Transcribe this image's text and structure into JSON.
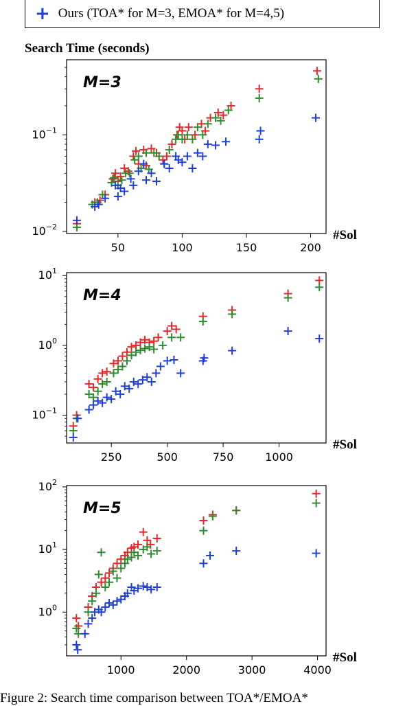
{
  "legend": {
    "label": "Ours (TOA* for M=3, EMOA* for M=4,5)",
    "marker": "+"
  },
  "title": "Search Time (seconds)",
  "caption": "Figure 2: Search time comparison between TOA*/EMOA*",
  "colors": {
    "red": "#e8272a",
    "green": "#2e8b2e",
    "blue": "#1f3fd8"
  },
  "chart_data": [
    {
      "type": "scatter",
      "panel_label": "M=3",
      "x_axis_label": "#Sol",
      "y_scale": "log",
      "xlim": [
        10,
        212
      ],
      "ylim": [
        0.0095,
        0.6
      ],
      "x_ticks": [
        50,
        100,
        150,
        200
      ],
      "y_ticks": [
        {
          "value": 0.01,
          "exp": "-2"
        },
        {
          "value": 0.1,
          "exp": "-1"
        }
      ],
      "series": [
        {
          "color": "red",
          "points": [
            [
              18,
              0.012
            ],
            [
              32,
              0.02
            ],
            [
              36,
              0.021
            ],
            [
              40,
              0.024
            ],
            [
              46,
              0.035
            ],
            [
              48,
              0.04
            ],
            [
              50,
              0.033
            ],
            [
              52,
              0.037
            ],
            [
              55,
              0.045
            ],
            [
              58,
              0.042
            ],
            [
              62,
              0.06
            ],
            [
              64,
              0.068
            ],
            [
              66,
              0.05
            ],
            [
              70,
              0.07
            ],
            [
              72,
              0.048
            ],
            [
              76,
              0.072
            ],
            [
              80,
              0.065
            ],
            [
              85,
              0.055
            ],
            [
              88,
              0.06
            ],
            [
              92,
              0.08
            ],
            [
              96,
              0.1
            ],
            [
              98,
              0.12
            ],
            [
              100,
              0.11
            ],
            [
              102,
              0.09
            ],
            [
              105,
              0.12
            ],
            [
              110,
              0.1
            ],
            [
              115,
              0.13
            ],
            [
              118,
              0.11
            ],
            [
              122,
              0.15
            ],
            [
              128,
              0.17
            ],
            [
              132,
              0.16
            ],
            [
              138,
              0.2
            ],
            [
              160,
              0.3
            ],
            [
              205,
              0.46
            ]
          ]
        },
        {
          "color": "green",
          "points": [
            [
              18,
              0.011
            ],
            [
              30,
              0.019
            ],
            [
              34,
              0.02
            ],
            [
              38,
              0.024
            ],
            [
              45,
              0.032
            ],
            [
              47,
              0.036
            ],
            [
              50,
              0.03
            ],
            [
              53,
              0.034
            ],
            [
              56,
              0.04
            ],
            [
              59,
              0.04
            ],
            [
              63,
              0.055
            ],
            [
              66,
              0.06
            ],
            [
              68,
              0.045
            ],
            [
              72,
              0.065
            ],
            [
              74,
              0.044
            ],
            [
              78,
              0.065
            ],
            [
              82,
              0.06
            ],
            [
              86,
              0.05
            ],
            [
              90,
              0.07
            ],
            [
              95,
              0.09
            ],
            [
              97,
              0.1
            ],
            [
              100,
              0.09
            ],
            [
              104,
              0.1
            ],
            [
              108,
              0.09
            ],
            [
              112,
              0.12
            ],
            [
              116,
              0.1
            ],
            [
              120,
              0.13
            ],
            [
              126,
              0.15
            ],
            [
              130,
              0.14
            ],
            [
              136,
              0.18
            ],
            [
              160,
              0.24
            ],
            [
              206,
              0.38
            ]
          ]
        },
        {
          "color": "blue",
          "points": [
            [
              18,
              0.013
            ],
            [
              32,
              0.018
            ],
            [
              35,
              0.019
            ],
            [
              40,
              0.022
            ],
            [
              48,
              0.03
            ],
            [
              50,
              0.023
            ],
            [
              52,
              0.028
            ],
            [
              55,
              0.026
            ],
            [
              60,
              0.035
            ],
            [
              62,
              0.03
            ],
            [
              66,
              0.042
            ],
            [
              70,
              0.05
            ],
            [
              72,
              0.034
            ],
            [
              76,
              0.04
            ],
            [
              80,
              0.033
            ],
            [
              86,
              0.05
            ],
            [
              90,
              0.045
            ],
            [
              95,
              0.06
            ],
            [
              97,
              0.055
            ],
            [
              100,
              0.052
            ],
            [
              104,
              0.06
            ],
            [
              108,
              0.045
            ],
            [
              112,
              0.065
            ],
            [
              116,
              0.06
            ],
            [
              120,
              0.08
            ],
            [
              126,
              0.078
            ],
            [
              134,
              0.085
            ],
            [
              160,
              0.09
            ],
            [
              161,
              0.11
            ],
            [
              204,
              0.15
            ]
          ]
        }
      ]
    },
    {
      "type": "scatter",
      "panel_label": "M=4",
      "x_axis_label": "#Sol",
      "y_scale": "log",
      "xlim": [
        50,
        1210
      ],
      "ylim": [
        0.04,
        11
      ],
      "x_ticks": [
        250,
        500,
        750,
        1000
      ],
      "y_ticks": [
        {
          "value": 0.1,
          "exp": "-1"
        },
        {
          "value": 1,
          "exp": "0"
        },
        {
          "value": 10,
          "exp": "1"
        }
      ],
      "series": [
        {
          "color": "red",
          "points": [
            [
              80,
              0.07
            ],
            [
              95,
              0.1
            ],
            [
              150,
              0.28
            ],
            [
              170,
              0.25
            ],
            [
              190,
              0.33
            ],
            [
              210,
              0.4
            ],
            [
              230,
              0.42
            ],
            [
              260,
              0.55
            ],
            [
              280,
              0.6
            ],
            [
              300,
              0.7
            ],
            [
              320,
              0.8
            ],
            [
              340,
              0.95
            ],
            [
              360,
              1.0
            ],
            [
              380,
              1.1
            ],
            [
              400,
              1.2
            ],
            [
              420,
              1.1
            ],
            [
              440,
              1.15
            ],
            [
              460,
              1.3
            ],
            [
              500,
              1.6
            ],
            [
              520,
              1.9
            ],
            [
              540,
              1.7
            ],
            [
              660,
              2.6
            ],
            [
              790,
              3.2
            ],
            [
              1040,
              5.5
            ],
            [
              1180,
              8.5
            ]
          ]
        },
        {
          "color": "green",
          "points": [
            [
              80,
              0.06
            ],
            [
              95,
              0.09
            ],
            [
              150,
              0.2
            ],
            [
              170,
              0.18
            ],
            [
              190,
              0.22
            ],
            [
              210,
              0.28
            ],
            [
              230,
              0.3
            ],
            [
              260,
              0.4
            ],
            [
              280,
              0.45
            ],
            [
              300,
              0.5
            ],
            [
              320,
              0.6
            ],
            [
              340,
              0.72
            ],
            [
              360,
              0.8
            ],
            [
              380,
              0.85
            ],
            [
              400,
              0.9
            ],
            [
              420,
              0.95
            ],
            [
              440,
              0.88
            ],
            [
              480,
              1.0
            ],
            [
              520,
              1.3
            ],
            [
              560,
              1.3
            ],
            [
              660,
              2.2
            ],
            [
              790,
              2.8
            ],
            [
              1040,
              4.8
            ],
            [
              1180,
              6.8
            ]
          ]
        },
        {
          "color": "blue",
          "points": [
            [
              80,
              0.048
            ],
            [
              100,
              0.09
            ],
            [
              150,
              0.12
            ],
            [
              170,
              0.14
            ],
            [
              190,
              0.16
            ],
            [
              210,
              0.15
            ],
            [
              230,
              0.18
            ],
            [
              250,
              0.17
            ],
            [
              270,
              0.22
            ],
            [
              290,
              0.2
            ],
            [
              310,
              0.26
            ],
            [
              330,
              0.24
            ],
            [
              350,
              0.3
            ],
            [
              370,
              0.28
            ],
            [
              390,
              0.32
            ],
            [
              410,
              0.35
            ],
            [
              430,
              0.3
            ],
            [
              450,
              0.4
            ],
            [
              470,
              0.5
            ],
            [
              500,
              0.6
            ],
            [
              530,
              0.62
            ],
            [
              560,
              0.4
            ],
            [
              660,
              0.6
            ],
            [
              665,
              0.66
            ],
            [
              790,
              0.84
            ],
            [
              1040,
              1.6
            ],
            [
              1180,
              1.25
            ]
          ]
        }
      ]
    },
    {
      "type": "scatter",
      "panel_label": "M=5",
      "x_axis_label": "#Sol",
      "y_scale": "log",
      "xlim": [
        170,
        4130
      ],
      "ylim": [
        0.2,
        105
      ],
      "x_ticks": [
        1000,
        2000,
        3000,
        4000
      ],
      "y_ticks": [
        {
          "value": 1,
          "exp": "0"
        },
        {
          "value": 10,
          "exp": "1"
        },
        {
          "value": 100,
          "exp": "2"
        }
      ],
      "series": [
        {
          "color": "red",
          "points": [
            [
              320,
              0.8
            ],
            [
              350,
              0.6
            ],
            [
              500,
              1.2
            ],
            [
              560,
              1.8
            ],
            [
              620,
              2.5
            ],
            [
              700,
              3.0
            ],
            [
              760,
              3.5
            ],
            [
              820,
              4.2
            ],
            [
              880,
              5.0
            ],
            [
              940,
              6.0
            ],
            [
              1000,
              7.0
            ],
            [
              1060,
              8.0
            ],
            [
              1100,
              9.0
            ],
            [
              1160,
              10.5
            ],
            [
              1200,
              11.0
            ],
            [
              1260,
              12.0
            ],
            [
              1340,
              19.0
            ],
            [
              1400,
              14.0
            ],
            [
              1450,
              12.0
            ],
            [
              1550,
              15.0
            ],
            [
              2260,
              29.0
            ],
            [
              2400,
              36.0
            ],
            [
              2760,
              42.0
            ],
            [
              3980,
              78.0
            ]
          ]
        },
        {
          "color": "green",
          "points": [
            [
              320,
              0.55
            ],
            [
              350,
              0.45
            ],
            [
              500,
              1.0
            ],
            [
              560,
              1.5
            ],
            [
              620,
              2.0
            ],
            [
              660,
              4.0
            ],
            [
              700,
              9.0
            ],
            [
              760,
              2.5
            ],
            [
              820,
              3.0
            ],
            [
              880,
              4.5
            ],
            [
              940,
              3.5
            ],
            [
              1000,
              5.0
            ],
            [
              1060,
              6.0
            ],
            [
              1100,
              7.0
            ],
            [
              1160,
              7.5
            ],
            [
              1200,
              9.0
            ],
            [
              1260,
              8.0
            ],
            [
              1340,
              10.0
            ],
            [
              1400,
              11.0
            ],
            [
              1460,
              8.5
            ],
            [
              1550,
              9.5
            ],
            [
              2260,
              20.0
            ],
            [
              2400,
              34.0
            ],
            [
              2760,
              42.0
            ],
            [
              3980,
              55.0
            ]
          ]
        },
        {
          "color": "blue",
          "points": [
            [
              320,
              0.3
            ],
            [
              340,
              0.25
            ],
            [
              450,
              0.45
            ],
            [
              500,
              0.65
            ],
            [
              560,
              0.8
            ],
            [
              600,
              1.0
            ],
            [
              660,
              1.1
            ],
            [
              700,
              1.0
            ],
            [
              760,
              1.2
            ],
            [
              820,
              1.4
            ],
            [
              880,
              1.3
            ],
            [
              940,
              1.5
            ],
            [
              1000,
              1.6
            ],
            [
              1060,
              1.8
            ],
            [
              1100,
              2.0
            ],
            [
              1160,
              2.5
            ],
            [
              1200,
              2.2
            ],
            [
              1260,
              2.4
            ],
            [
              1340,
              2.6
            ],
            [
              1400,
              2.5
            ],
            [
              1460,
              2.3
            ],
            [
              1550,
              2.5
            ],
            [
              2260,
              6.0
            ],
            [
              2360,
              8.0
            ],
            [
              2760,
              9.5
            ],
            [
              3980,
              8.7
            ]
          ]
        }
      ]
    }
  ]
}
